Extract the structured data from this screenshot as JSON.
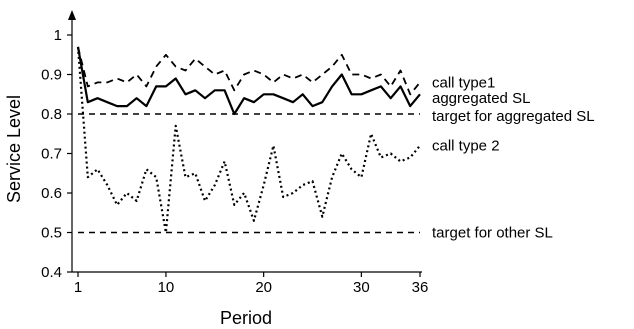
{
  "chart_data": {
    "type": "line",
    "xlabel": "Period",
    "ylabel": "Service Level",
    "xlim": [
      1,
      36
    ],
    "ylim": [
      0.4,
      1.0
    ],
    "x_ticks": [
      1,
      10,
      20,
      30,
      36
    ],
    "y_ticks": [
      0.4,
      0.5,
      0.6,
      0.7,
      0.8,
      0.9,
      1
    ],
    "x": [
      1,
      2,
      3,
      4,
      5,
      6,
      7,
      8,
      9,
      10,
      11,
      12,
      13,
      14,
      15,
      16,
      17,
      18,
      19,
      20,
      21,
      22,
      23,
      24,
      25,
      26,
      27,
      28,
      29,
      30,
      31,
      32,
      33,
      34,
      35,
      36
    ],
    "series": [
      {
        "name": "call type1",
        "style": "dashed",
        "color": "#000000",
        "values": [
          0.97,
          0.87,
          0.88,
          0.88,
          0.89,
          0.88,
          0.9,
          0.87,
          0.92,
          0.95,
          0.92,
          0.91,
          0.94,
          0.92,
          0.9,
          0.91,
          0.86,
          0.9,
          0.91,
          0.9,
          0.88,
          0.9,
          0.89,
          0.9,
          0.88,
          0.9,
          0.92,
          0.95,
          0.9,
          0.9,
          0.89,
          0.9,
          0.87,
          0.91,
          0.85,
          0.88
        ]
      },
      {
        "name": "aggregated SL",
        "style": "solid",
        "color": "#000000",
        "values": [
          0.97,
          0.83,
          0.84,
          0.83,
          0.82,
          0.82,
          0.84,
          0.82,
          0.87,
          0.87,
          0.89,
          0.85,
          0.86,
          0.84,
          0.86,
          0.86,
          0.8,
          0.84,
          0.83,
          0.85,
          0.85,
          0.84,
          0.83,
          0.85,
          0.82,
          0.83,
          0.87,
          0.9,
          0.85,
          0.85,
          0.86,
          0.87,
          0.84,
          0.87,
          0.82,
          0.85
        ]
      },
      {
        "name": "call type 2",
        "style": "dotted",
        "color": "#000000",
        "values": [
          0.97,
          0.64,
          0.66,
          0.62,
          0.57,
          0.6,
          0.58,
          0.66,
          0.64,
          0.5,
          0.77,
          0.64,
          0.65,
          0.58,
          0.62,
          0.68,
          0.57,
          0.6,
          0.53,
          0.62,
          0.72,
          0.59,
          0.6,
          0.62,
          0.63,
          0.54,
          0.64,
          0.7,
          0.66,
          0.64,
          0.75,
          0.69,
          0.7,
          0.68,
          0.69,
          0.72
        ]
      }
    ],
    "reference_lines": [
      {
        "name": "target for aggregated SL",
        "y": 0.8,
        "style": "dashed",
        "color": "#000000"
      },
      {
        "name": "target for other SL",
        "y": 0.5,
        "style": "dashed",
        "color": "#000000"
      }
    ],
    "annotations": [
      {
        "text": "call type1",
        "y": 0.88
      },
      {
        "text": "aggregated SL",
        "y": 0.84
      },
      {
        "text": "target for aggregated SL",
        "y": 0.795
      },
      {
        "text": "call type 2",
        "y": 0.72
      },
      {
        "text": "target for other SL",
        "y": 0.5
      }
    ],
    "grid": false,
    "legend": "none"
  }
}
